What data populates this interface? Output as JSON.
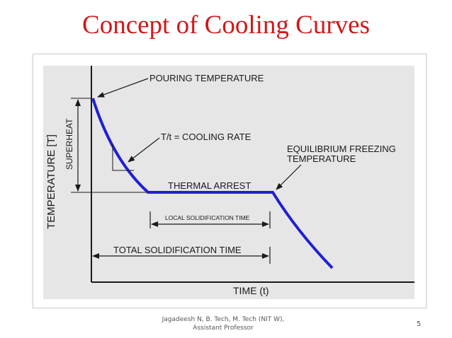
{
  "slide": {
    "title": "Concept of Cooling Curves",
    "page_number": "5",
    "footer_line1": "Jagadeesh N, B. Tech, M. Tech (NIT W),",
    "footer_line2": "Assistant Professor"
  },
  "diagram": {
    "y_axis_label": "TEMPERATURE [T]",
    "x_axis_label": "TIME (t)",
    "pouring_temperature": "POURING TEMPERATURE",
    "superheat": "SUPERHEAT",
    "cooling_rate": "T/t = COOLING RATE",
    "equilibrium_line1": "EQUILIBRIUM FREEZING",
    "equilibrium_line2": "TEMPERATURE",
    "thermal_arrest": "THERMAL ARREST",
    "local_solidification": "LOCAL SOLIDIFICATION TIME",
    "total_solidification": "TOTAL SOLIDIFICATION TIME",
    "colors": {
      "curve": "#1f1fd6",
      "title": "#d01818",
      "plot_bg": "#e6e6e6"
    }
  }
}
